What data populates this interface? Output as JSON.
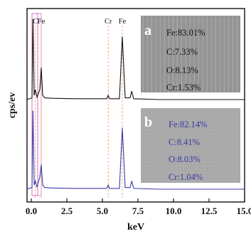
{
  "chart_data": {
    "type": "line",
    "xlabel": "keV",
    "ylabel": "cps/ev",
    "xlim": [
      -0.3,
      15.0
    ],
    "xticks": [
      "0.0",
      "2.5",
      "5.0",
      "7.5",
      "10.0",
      "12.5",
      "15.0"
    ],
    "xtick_values": [
      0.0,
      2.5,
      5.0,
      7.5,
      10.0,
      12.5,
      15.0
    ],
    "peak_labels": [
      {
        "text": "C",
        "x": 0.28
      },
      {
        "text": "Fe",
        "x": 0.7
      },
      {
        "text": "Cr",
        "x": 5.41
      },
      {
        "text": "Fe",
        "x": 6.4
      }
    ],
    "series": [
      {
        "color": "#111111",
        "x": [
          -0.3,
          0.05,
          0.12,
          0.2,
          0.28,
          0.4,
          0.52,
          0.6,
          0.7,
          0.8,
          0.95,
          1.5,
          3.0,
          5.3,
          5.41,
          5.5,
          6.2,
          6.4,
          6.6,
          6.95,
          7.06,
          7.2,
          9.0,
          12.0,
          15.0
        ],
        "y": [
          0.0,
          0.02,
          0.96,
          0.05,
          0.12,
          0.03,
          0.08,
          0.12,
          0.38,
          0.05,
          0.02,
          0.015,
          0.01,
          0.01,
          0.05,
          0.01,
          0.01,
          0.75,
          0.02,
          0.02,
          0.1,
          0.01,
          0.0,
          0.0,
          0.0
        ]
      },
      {
        "color": "#3a3aa8",
        "x": [
          -0.3,
          0.05,
          0.12,
          0.2,
          0.28,
          0.4,
          0.52,
          0.6,
          0.7,
          0.8,
          0.95,
          1.5,
          3.0,
          5.3,
          5.41,
          5.5,
          6.2,
          6.4,
          6.6,
          6.95,
          7.06,
          7.2,
          9.0,
          12.0,
          15.0
        ],
        "y": [
          0.0,
          0.02,
          0.96,
          0.05,
          0.1,
          0.03,
          0.1,
          0.15,
          0.3,
          0.05,
          0.02,
          0.015,
          0.01,
          0.01,
          0.05,
          0.01,
          0.01,
          0.75,
          0.02,
          0.02,
          0.1,
          0.01,
          0.0,
          0.0,
          0.0
        ]
      }
    ]
  },
  "inset_a": {
    "letter": "a",
    "lines": [
      "Fe:83.01%",
      "C:7.33%",
      "O:8.13%",
      "Cr:1.53%"
    ]
  },
  "inset_b": {
    "letter": "b",
    "lines": [
      "Fe:82.14%",
      "C:8.41%",
      "O:8.03%",
      "Cr:1.04%"
    ]
  }
}
